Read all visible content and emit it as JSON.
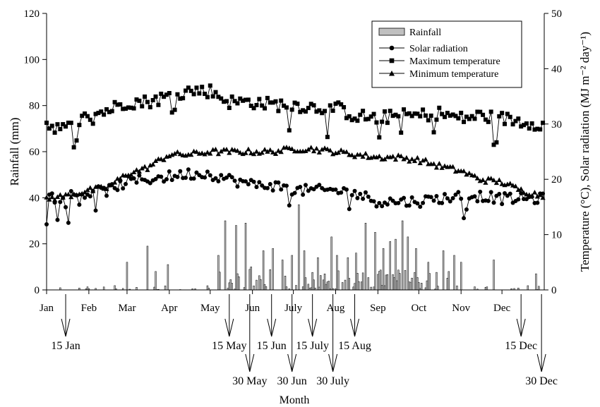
{
  "chart_data": {
    "type": "bar+line",
    "xlabel": "Month",
    "ylabel_left": "Rainfall (mm)",
    "ylabel_right": "Temperature (°C), Solar radiation (MJ m⁻² day⁻¹)",
    "ylim_left": [
      0,
      120
    ],
    "ylim_right": [
      0,
      50
    ],
    "yticks_left": [
      "0",
      "20",
      "40",
      "60",
      "80",
      "100",
      "120"
    ],
    "yticks_right": [
      "0",
      "10",
      "20",
      "30",
      "40",
      "50"
    ],
    "months": [
      "Jan",
      "Feb",
      "Mar",
      "Apr",
      "May",
      "Jun",
      "July",
      "Aug",
      "Sep",
      "Oct",
      "Nov",
      "Dec"
    ],
    "legend_position": "top-right",
    "grid": false,
    "legend": [
      {
        "key": "rain",
        "label": "Rainfall"
      },
      {
        "key": "solar",
        "label": "Solar radiation"
      },
      {
        "key": "tmax",
        "label": "Maximum temperature"
      },
      {
        "key": "tmin",
        "label": "Minimum temperature"
      }
    ],
    "series_styles": {
      "rain": {
        "fill": "#c0c0c0",
        "stroke": "#000000"
      },
      "solar": {
        "marker": "circle",
        "color": "#000000"
      },
      "tmax": {
        "marker": "square",
        "color": "#000000"
      },
      "tmin": {
        "marker": "triangle",
        "color": "#000000"
      }
    },
    "series": [
      {
        "key": "tmax",
        "axis": "right",
        "day_of_year": [
          1,
          15,
          32,
          46,
          60,
          74,
          91,
          105,
          121,
          135,
          152,
          166,
          182,
          196,
          213,
          227,
          244,
          258,
          274,
          288,
          305,
          319,
          335,
          349,
          365
        ],
        "values": [
          30,
          29,
          31.5,
          32.5,
          34,
          34,
          35,
          36,
          36,
          34,
          34,
          33.5,
          33.5,
          33,
          33,
          31.5,
          31,
          31.5,
          31.5,
          32,
          31,
          31.5,
          31,
          30.5,
          30
        ]
      },
      {
        "key": "tmin",
        "axis": "right",
        "day_of_year": [
          1,
          15,
          32,
          46,
          60,
          74,
          91,
          105,
          121,
          135,
          152,
          166,
          182,
          196,
          213,
          227,
          244,
          258,
          274,
          288,
          305,
          319,
          335,
          349,
          365
        ],
        "values": [
          16.5,
          17,
          18,
          18.5,
          21,
          22,
          24.5,
          24.5,
          25,
          25,
          25,
          25,
          25.5,
          25.5,
          25,
          24.5,
          24,
          24,
          23.5,
          22.5,
          21.5,
          20,
          19.5,
          18,
          17
        ]
      },
      {
        "key": "solar",
        "axis": "right",
        "day_of_year": [
          1,
          15,
          32,
          46,
          60,
          74,
          91,
          105,
          121,
          135,
          152,
          166,
          182,
          196,
          213,
          227,
          244,
          258,
          274,
          288,
          305,
          319,
          335,
          349,
          365
        ],
        "values": [
          16.5,
          17,
          17.5,
          18,
          19.5,
          20,
          20.5,
          21,
          21,
          20,
          19,
          19,
          18,
          18,
          18,
          17.5,
          16,
          16,
          16,
          16.5,
          17,
          17,
          16.5,
          16.5,
          16.5
        ]
      },
      {
        "key": "rain",
        "axis": "left",
        "bars": [
          {
            "day": 60,
            "value": 12
          },
          {
            "day": 75,
            "value": 19
          },
          {
            "day": 81,
            "value": 8
          },
          {
            "day": 90,
            "value": 11
          },
          {
            "day": 127,
            "value": 15
          },
          {
            "day": 132,
            "value": 30
          },
          {
            "day": 140,
            "value": 28
          },
          {
            "day": 147,
            "value": 29
          },
          {
            "day": 151,
            "value": 10
          },
          {
            "day": 160,
            "value": 17
          },
          {
            "day": 167,
            "value": 18
          },
          {
            "day": 174,
            "value": 13
          },
          {
            "day": 181,
            "value": 15
          },
          {
            "day": 186,
            "value": 37
          },
          {
            "day": 190,
            "value": 17
          },
          {
            "day": 200,
            "value": 14
          },
          {
            "day": 210,
            "value": 23
          },
          {
            "day": 214,
            "value": 15
          },
          {
            "day": 222,
            "value": 14
          },
          {
            "day": 228,
            "value": 16
          },
          {
            "day": 235,
            "value": 29
          },
          {
            "day": 242,
            "value": 25
          },
          {
            "day": 248,
            "value": 18
          },
          {
            "day": 253,
            "value": 21
          },
          {
            "day": 257,
            "value": 22
          },
          {
            "day": 262,
            "value": 30
          },
          {
            "day": 266,
            "value": 23
          },
          {
            "day": 272,
            "value": 18
          },
          {
            "day": 281,
            "value": 12
          },
          {
            "day": 292,
            "value": 17
          },
          {
            "day": 300,
            "value": 15
          },
          {
            "day": 305,
            "value": 12
          },
          {
            "day": 329,
            "value": 13
          },
          {
            "day": 360,
            "value": 7
          }
        ]
      }
    ],
    "annotations": [
      {
        "label": "15 Jan",
        "day": 15,
        "row": 1
      },
      {
        "label": "15 May",
        "day": 135,
        "row": 1
      },
      {
        "label": "15 Jun",
        "day": 166,
        "row": 1
      },
      {
        "label": "15 July",
        "day": 196,
        "row": 1
      },
      {
        "label": "15 Aug",
        "day": 227,
        "row": 1
      },
      {
        "label": "15 Dec",
        "day": 349,
        "row": 1
      },
      {
        "label": "30 May",
        "day": 150,
        "row": 2
      },
      {
        "label": "30 Jun",
        "day": 181,
        "row": 2
      },
      {
        "label": "30 July",
        "day": 211,
        "row": 2
      },
      {
        "label": "30 Dec",
        "day": 364,
        "row": 2
      }
    ]
  }
}
